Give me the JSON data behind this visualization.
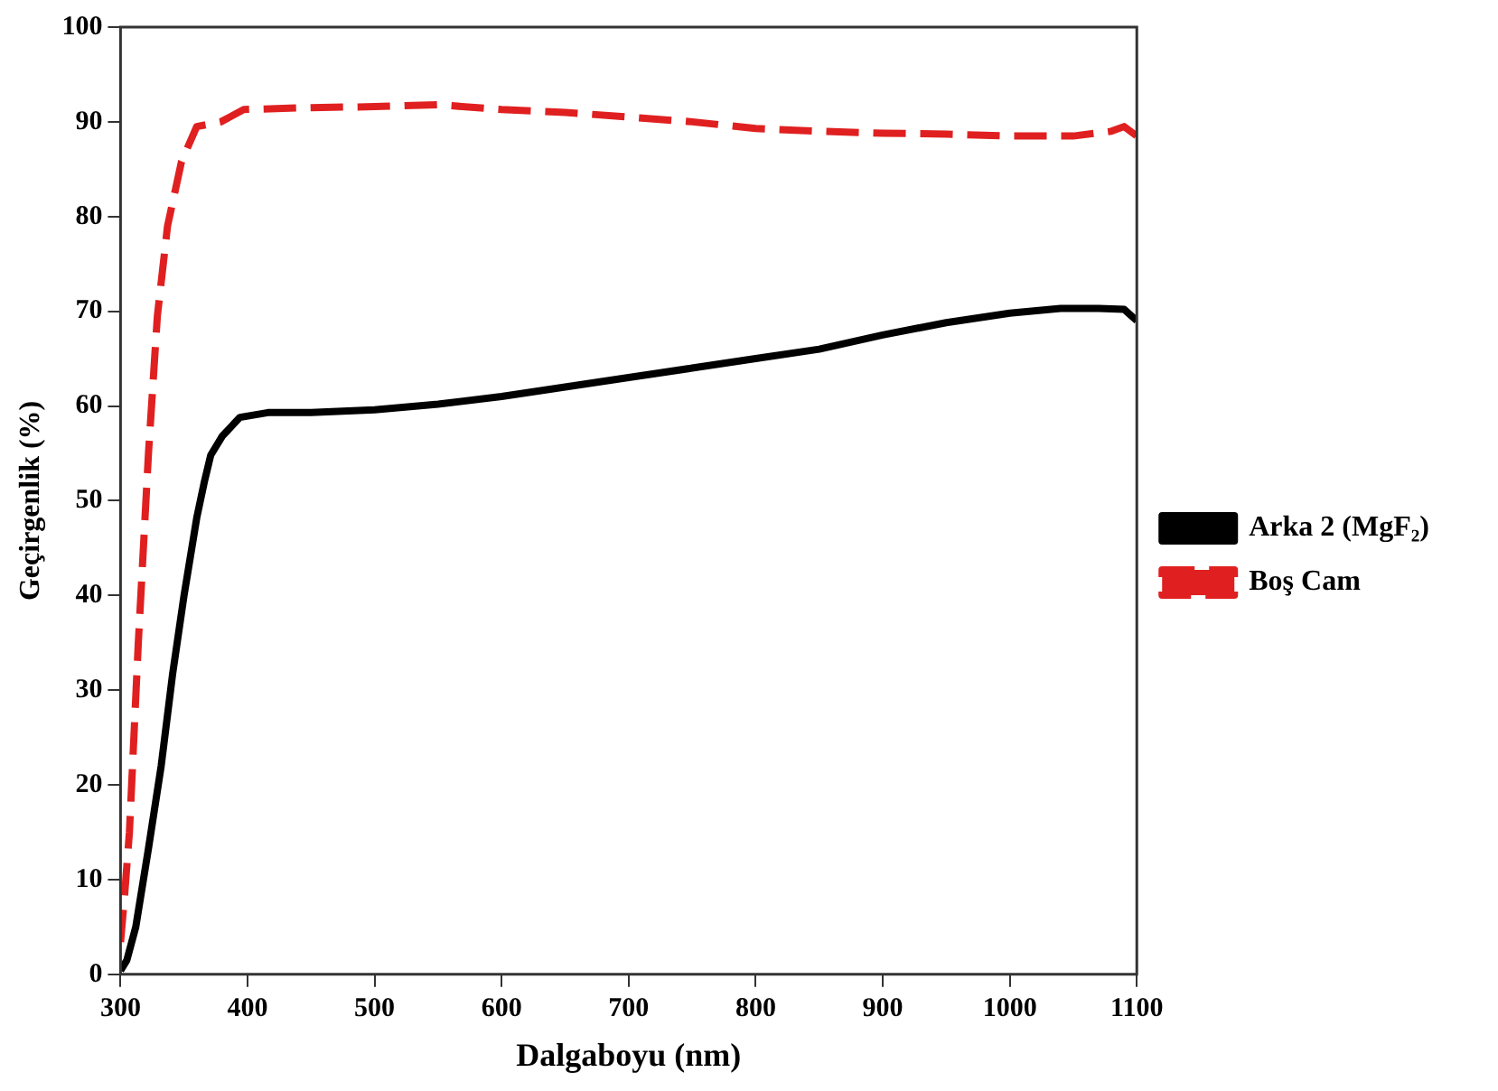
{
  "chart_data": {
    "type": "line",
    "xlabel": "Dalgaboyu (nm)",
    "ylabel": "Geçirgenlik (%)",
    "xlim": [
      300,
      1100
    ],
    "xticks": [
      300,
      400,
      500,
      600,
      700,
      800,
      900,
      1000,
      1100
    ],
    "ylim": [
      0,
      100
    ],
    "yticks": [
      0,
      10,
      20,
      30,
      40,
      50,
      60,
      70,
      80,
      90,
      100
    ],
    "grid": false,
    "legend": "right",
    "marker": "none",
    "series": [
      {
        "name": "Arka 2 (MgF₂)",
        "color": "#000000",
        "line_style": "solid",
        "x": [
          300,
          305,
          312,
          322,
          332,
          341,
          350,
          360,
          366,
          371,
          380,
          394,
          416,
          450,
          500,
          550,
          600,
          650,
          700,
          750,
          800,
          850,
          900,
          950,
          1000,
          1040,
          1070,
          1090,
          1100
        ],
        "values": [
          0.4,
          1.5,
          5,
          13.3,
          22,
          31.7,
          40,
          48.2,
          52,
          54.8,
          56.8,
          58.8,
          59.3,
          59.3,
          59.6,
          60.2,
          61,
          62,
          63,
          64,
          65,
          66,
          67.5,
          68.8,
          69.8,
          70.3,
          70.3,
          70.2,
          69
        ]
      },
      {
        "name": "Boş Cam",
        "color": "#e02020",
        "line_style": "dashed",
        "x": [
          300,
          303,
          307,
          314,
          322,
          329,
          337,
          348,
          360,
          379,
          397,
          450,
          500,
          550,
          600,
          650,
          700,
          750,
          800,
          850,
          900,
          950,
          1000,
          1050,
          1080,
          1090,
          1100
        ],
        "values": [
          3.4,
          8,
          15,
          35,
          55,
          69.5,
          79,
          85.8,
          89.5,
          90,
          91.3,
          91.5,
          91.6,
          91.8,
          91.3,
          91,
          90.5,
          90,
          89.3,
          89,
          88.8,
          88.7,
          88.5,
          88.5,
          89,
          89.5,
          88.5
        ]
      }
    ]
  }
}
